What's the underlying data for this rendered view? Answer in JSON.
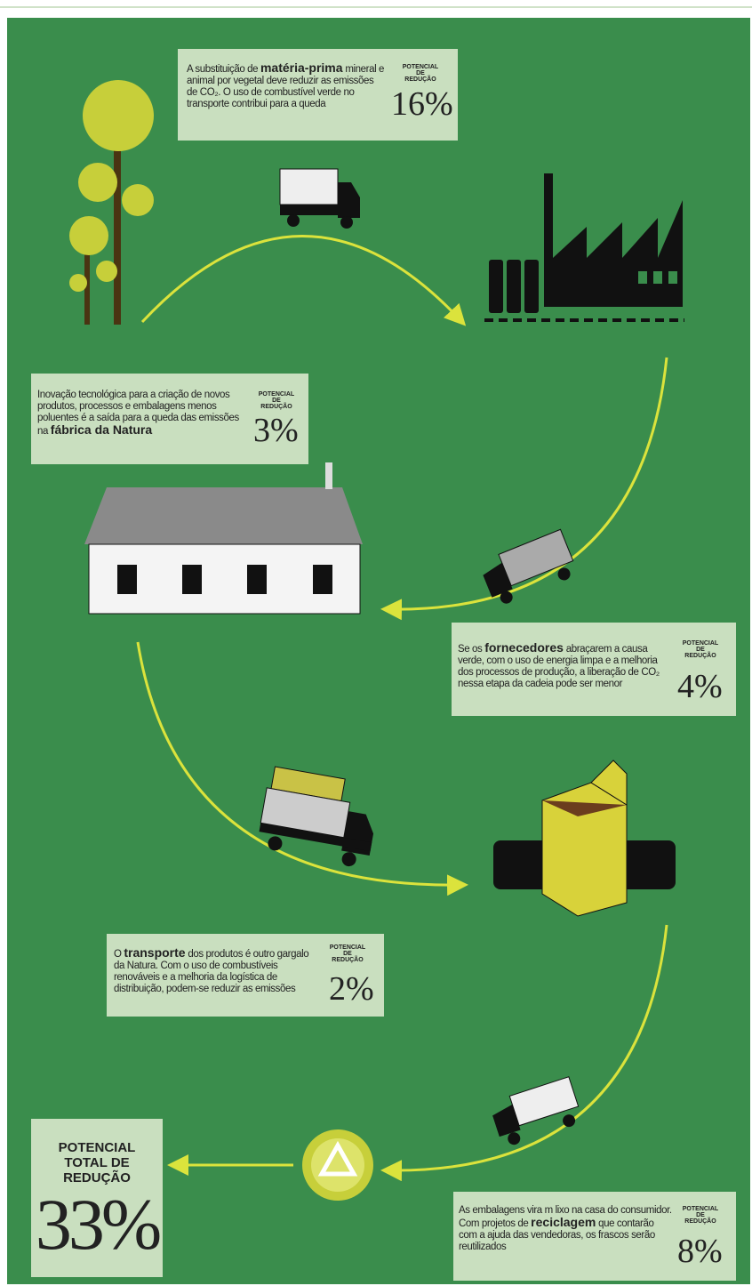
{
  "boxes": [
    {
      "text_before": "A substituição de ",
      "text_bold": "matéria-prima",
      "text_after": " mineral e animal por vegetal deve reduzir as emissões de CO₂. O uso de combustível verde no transporte contribui para a queda",
      "label": "POTENCIAL DE REDUÇÃO",
      "value": "16%"
    },
    {
      "text_before": "Inovação tecnológica para a criação de novos produtos, processos e embalagens menos poluentes é a saída para a queda das emissões na ",
      "text_bold": "fábrica da Natura",
      "text_after": "",
      "label": "POTENCIAL DE REDUÇÃO",
      "value": "3%"
    },
    {
      "text_before": "Se os ",
      "text_bold": "fornecedores",
      "text_after": " abraçarem a causa verde, com o uso de energia limpa e a melhoria dos processos de produção, a liberação de CO₂ nessa etapa da cadeia pode ser menor",
      "label": "POTENCIAL DE REDUÇÃO",
      "value": "4%"
    },
    {
      "text_before": "O ",
      "text_bold": "transporte",
      "text_after": " dos produtos é outro gargalo da Natura. Com o uso de combustíveis renováveis e a melhoria da logística de distribuição, podem-se reduzir as emissões",
      "label": "POTENCIAL DE REDUÇÃO",
      "value": "2%"
    },
    {
      "text_before": "As embalagens vira m lixo na casa do consumidor. Com projetos de ",
      "text_bold": "reciclagem",
      "text_after": " que contarão com a ajuda das vendedoras, os frascos serão reutilizados",
      "label": "POTENCIAL DE REDUÇÃO",
      "value": "8%"
    }
  ],
  "total": {
    "label": "POTENCIAL TOTAL DE REDUÇÃO",
    "value": "33%"
  }
}
